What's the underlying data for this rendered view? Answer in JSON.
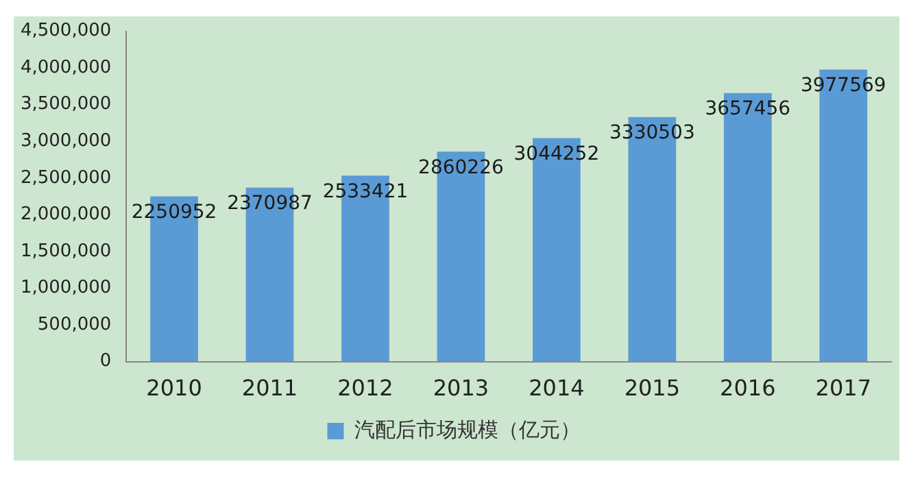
{
  "chart_data": {
    "type": "bar",
    "categories": [
      "2010",
      "2011",
      "2012",
      "2013",
      "2014",
      "2015",
      "2016",
      "2017"
    ],
    "series": [
      {
        "name": "汽配后市场规模（亿元）",
        "color": "#5b9bd5",
        "values": [
          2250952,
          2370987,
          2533421,
          2860226,
          3044252,
          3330503,
          3657456,
          3977569
        ]
      }
    ],
    "ylim": [
      0,
      4500000
    ],
    "yticks": [
      {
        "value": 0,
        "label": "0"
      },
      {
        "value": 500000,
        "label": "500,000"
      },
      {
        "value": 1000000,
        "label": "1,000,000"
      },
      {
        "value": 1500000,
        "label": "1,500,000"
      },
      {
        "value": 2000000,
        "label": "2,000,000"
      },
      {
        "value": 2500000,
        "label": "2,500,000"
      },
      {
        "value": 3000000,
        "label": "3,000,000"
      },
      {
        "value": 3500000,
        "label": "3,500,000"
      },
      {
        "value": 4000000,
        "label": "4,000,000"
      },
      {
        "value": 4500000,
        "label": "4,500,000"
      }
    ],
    "grid": false,
    "legend": "bottom",
    "data_labels": true
  }
}
